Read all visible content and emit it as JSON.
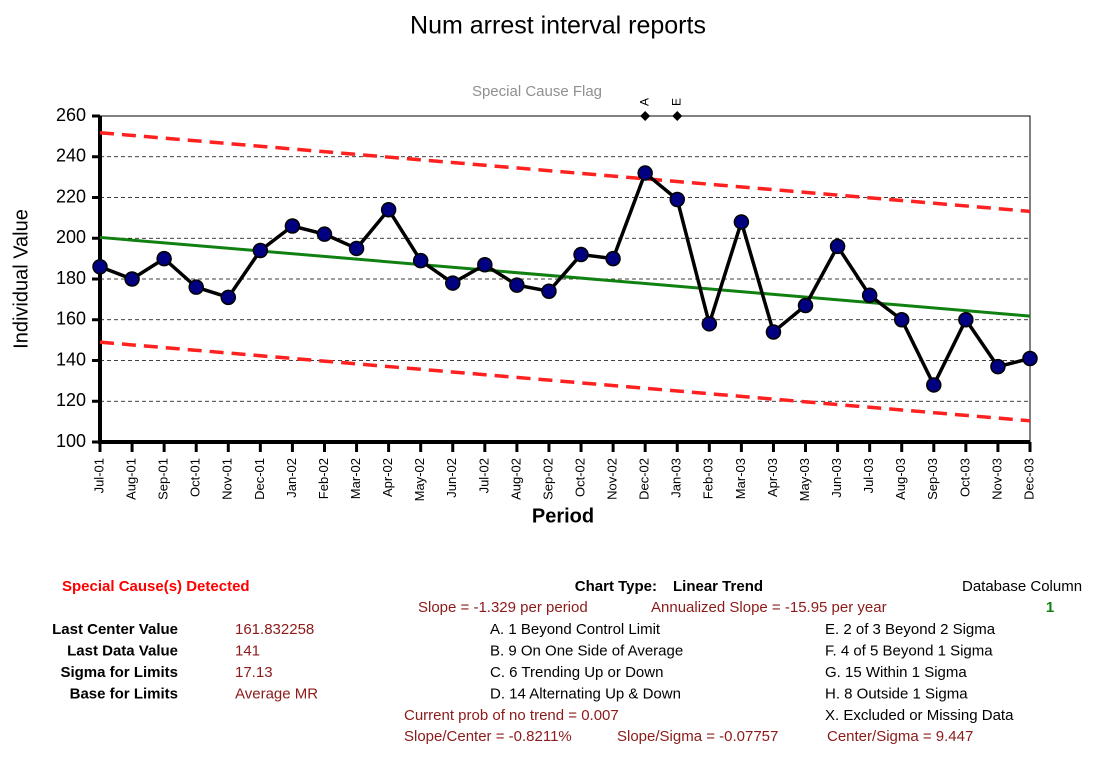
{
  "chart_data": {
    "type": "line",
    "title": "Num arrest interval reports",
    "flag_title": "Special Cause Flag",
    "y_label": "Individual Value",
    "x_label": "Period",
    "categories": [
      "Jul-01",
      "Aug-01",
      "Sep-01",
      "Oct-01",
      "Nov-01",
      "Dec-01",
      "Jan-02",
      "Feb-02",
      "Mar-02",
      "Apr-02",
      "May-02",
      "Jun-02",
      "Jul-02",
      "Aug-02",
      "Sep-02",
      "Oct-02",
      "Nov-02",
      "Dec-02",
      "Jan-03",
      "Feb-03",
      "Mar-03",
      "Apr-03",
      "May-03",
      "Jun-03",
      "Jul-03",
      "Aug-03",
      "Sep-03",
      "Oct-03",
      "Nov-03",
      "Dec-03"
    ],
    "series": [
      {
        "color": "#000000",
        "marker_color": "#000080",
        "values": [
          186,
          180,
          190,
          176,
          171,
          194,
          206,
          202,
          195,
          214,
          189,
          178,
          187,
          177,
          174,
          192,
          190,
          232,
          219,
          158,
          208,
          154,
          167,
          196,
          172,
          160,
          128,
          160,
          137,
          141
        ]
      }
    ],
    "center_line": {
      "start": 200.4,
      "end": 161.8,
      "color": "#108010"
    },
    "upper_limit": {
      "start": 251.8,
      "end": 213.2,
      "color": "#ff2020"
    },
    "lower_limit": {
      "start": 149.0,
      "end": 110.4,
      "color": "#ff2020"
    },
    "flags": [
      {
        "category": "Dec-02",
        "label": "A"
      },
      {
        "category": "Jan-03",
        "label": "E"
      }
    ],
    "ylim": [
      100,
      260
    ],
    "yticks": [
      100,
      120,
      140,
      160,
      180,
      200,
      220,
      240,
      260
    ],
    "grid": true
  },
  "info": {
    "detected": "Special Cause(s) Detected",
    "chart_type_label": "Chart Type:",
    "chart_type": "Linear Trend",
    "db_column_label": "Database Column",
    "db_column": "1",
    "slope": "Slope = -1.329 per period",
    "annualized": "Annualized Slope = -15.95 per year",
    "stats": [
      {
        "label": "Last Center Value",
        "value": "161.832258"
      },
      {
        "label": "Last Data Value",
        "value": "141"
      },
      {
        "label": "Sigma for Limits",
        "value": "17.13"
      },
      {
        "label": "Base for Limits",
        "value": "Average MR"
      }
    ],
    "rules_left": [
      "A. 1 Beyond Control Limit",
      "B. 9 On One Side of Average",
      "C. 6 Trending Up or Down",
      "D. 14 Alternating  Up & Down"
    ],
    "rules_right": [
      "E. 2 of 3 Beyond 2 Sigma",
      "F. 4 of 5 Beyond 1 Sigma",
      "G. 15 Within 1 Sigma",
      "H. 8 Outside 1 Sigma",
      "X. Excluded or Missing Data"
    ],
    "prob": "Current prob of no trend = 0.007",
    "slope_center": "Slope/Center = -0.8211%",
    "slope_sigma": "Slope/Sigma = -0.07757",
    "center_sigma": "Center/Sigma = 9.447"
  }
}
